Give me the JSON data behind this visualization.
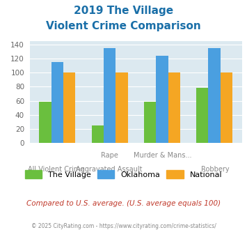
{
  "title_line1": "2019 The Village",
  "title_line2": "Violent Crime Comparison",
  "the_village": [
    59,
    25,
    59,
    78
  ],
  "oklahoma": [
    115,
    135,
    124,
    135
  ],
  "national": [
    100,
    100,
    100,
    100
  ],
  "bar_colors": {
    "the_village": "#6abf3e",
    "oklahoma": "#4a9fe0",
    "national": "#f5a623"
  },
  "ylim": [
    0,
    145
  ],
  "yticks": [
    0,
    20,
    40,
    60,
    80,
    100,
    120,
    140
  ],
  "plot_bg": "#dce9f0",
  "title_color": "#1a6fa8",
  "subtitle_color": "#c0392b",
  "footer_color": "#888888",
  "footer": "© 2025 CityRating.com - https://www.cityrating.com/crime-statistics/",
  "subtitle": "Compared to U.S. average. (U.S. average equals 100)",
  "top_labels": [
    "",
    "Rape",
    "Murder & Mans...",
    ""
  ],
  "bot_labels": [
    "All Violent Crime",
    "Aggravated Assault",
    "",
    "Robbery"
  ]
}
